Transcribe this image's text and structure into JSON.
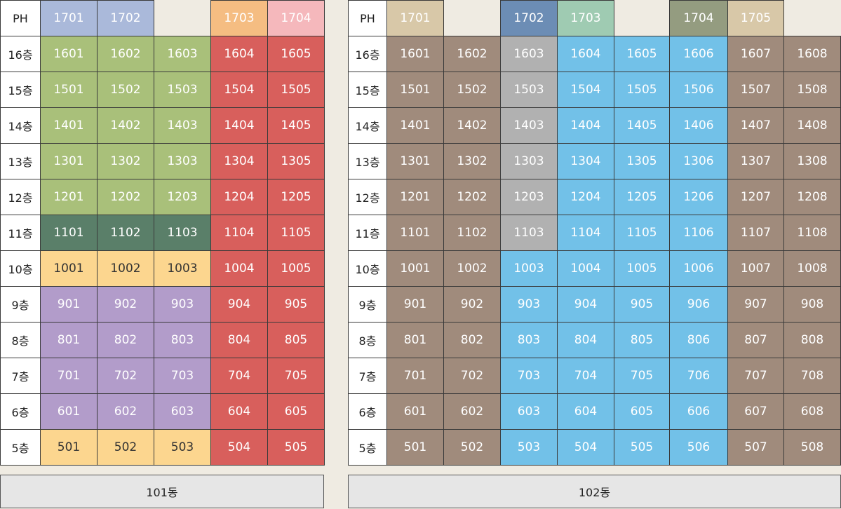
{
  "palette": {
    "lightblue": "#aab9da",
    "orange": "#f5bd82",
    "pink": "#f5b8bc",
    "green": "#a9c07a",
    "darkgreen": "#5a7f69",
    "yellow": "#fcd68f",
    "purple": "#b29cca",
    "red": "#d85f5c",
    "tan": "#d8c8a8",
    "steel": "#6c8db5",
    "mint": "#9fcbb2",
    "olive": "#949c80",
    "brown": "#a08b7c",
    "gray": "#b1b1b1",
    "sky": "#72c1e8"
  },
  "buildings": [
    {
      "id": "b101",
      "name": "101동",
      "col_widths": [
        57,
        81,
        81,
        81,
        81,
        81
      ],
      "rows": [
        {
          "label": "PH",
          "cells": [
            {
              "t": "1701",
              "c": "lightblue"
            },
            {
              "t": "1702",
              "c": "lightblue"
            },
            null,
            {
              "t": "1703",
              "c": "orange"
            },
            {
              "t": "1704",
              "c": "pink"
            }
          ]
        },
        {
          "label": "16층",
          "cells": [
            {
              "t": "1601",
              "c": "green"
            },
            {
              "t": "1602",
              "c": "green"
            },
            {
              "t": "1603",
              "c": "green"
            },
            {
              "t": "1604",
              "c": "red"
            },
            {
              "t": "1605",
              "c": "red"
            }
          ]
        },
        {
          "label": "15층",
          "cells": [
            {
              "t": "1501",
              "c": "green"
            },
            {
              "t": "1502",
              "c": "green"
            },
            {
              "t": "1503",
              "c": "green"
            },
            {
              "t": "1504",
              "c": "red"
            },
            {
              "t": "1505",
              "c": "red"
            }
          ]
        },
        {
          "label": "14층",
          "cells": [
            {
              "t": "1401",
              "c": "green"
            },
            {
              "t": "1402",
              "c": "green"
            },
            {
              "t": "1403",
              "c": "green"
            },
            {
              "t": "1404",
              "c": "red"
            },
            {
              "t": "1405",
              "c": "red"
            }
          ]
        },
        {
          "label": "13층",
          "cells": [
            {
              "t": "1301",
              "c": "green"
            },
            {
              "t": "1302",
              "c": "green"
            },
            {
              "t": "1303",
              "c": "green"
            },
            {
              "t": "1304",
              "c": "red"
            },
            {
              "t": "1305",
              "c": "red"
            }
          ]
        },
        {
          "label": "12층",
          "cells": [
            {
              "t": "1201",
              "c": "green"
            },
            {
              "t": "1202",
              "c": "green"
            },
            {
              "t": "1203",
              "c": "green"
            },
            {
              "t": "1204",
              "c": "red"
            },
            {
              "t": "1205",
              "c": "red"
            }
          ]
        },
        {
          "label": "11층",
          "cells": [
            {
              "t": "1101",
              "c": "darkgreen"
            },
            {
              "t": "1102",
              "c": "darkgreen"
            },
            {
              "t": "1103",
              "c": "darkgreen"
            },
            {
              "t": "1104",
              "c": "red"
            },
            {
              "t": "1105",
              "c": "red"
            }
          ]
        },
        {
          "label": "10층",
          "cells": [
            {
              "t": "1001",
              "c": "yellow",
              "d": 1
            },
            {
              "t": "1002",
              "c": "yellow",
              "d": 1
            },
            {
              "t": "1003",
              "c": "yellow",
              "d": 1
            },
            {
              "t": "1004",
              "c": "red"
            },
            {
              "t": "1005",
              "c": "red"
            }
          ]
        },
        {
          "label": "9층",
          "cells": [
            {
              "t": "901",
              "c": "purple"
            },
            {
              "t": "902",
              "c": "purple"
            },
            {
              "t": "903",
              "c": "purple"
            },
            {
              "t": "904",
              "c": "red"
            },
            {
              "t": "905",
              "c": "red"
            }
          ]
        },
        {
          "label": "8층",
          "cells": [
            {
              "t": "801",
              "c": "purple"
            },
            {
              "t": "802",
              "c": "purple"
            },
            {
              "t": "803",
              "c": "purple"
            },
            {
              "t": "804",
              "c": "red"
            },
            {
              "t": "805",
              "c": "red"
            }
          ]
        },
        {
          "label": "7층",
          "cells": [
            {
              "t": "701",
              "c": "purple"
            },
            {
              "t": "702",
              "c": "purple"
            },
            {
              "t": "703",
              "c": "purple"
            },
            {
              "t": "704",
              "c": "red"
            },
            {
              "t": "705",
              "c": "red"
            }
          ]
        },
        {
          "label": "6층",
          "cells": [
            {
              "t": "601",
              "c": "purple"
            },
            {
              "t": "602",
              "c": "purple"
            },
            {
              "t": "603",
              "c": "purple"
            },
            {
              "t": "604",
              "c": "red"
            },
            {
              "t": "605",
              "c": "red"
            }
          ]
        },
        {
          "label": "5층",
          "cells": [
            {
              "t": "501",
              "c": "yellow",
              "d": 1
            },
            {
              "t": "502",
              "c": "yellow",
              "d": 1
            },
            {
              "t": "503",
              "c": "yellow",
              "d": 1
            },
            {
              "t": "504",
              "c": "red"
            },
            {
              "t": "505",
              "c": "red"
            }
          ]
        }
      ]
    },
    {
      "id": "b102",
      "name": "102동",
      "col_widths": [
        55,
        81,
        81,
        81,
        81,
        79,
        83,
        80,
        81
      ],
      "rows": [
        {
          "label": "PH",
          "cells": [
            {
              "t": "1701",
              "c": "tan"
            },
            null,
            {
              "t": "1702",
              "c": "steel"
            },
            {
              "t": "1703",
              "c": "mint"
            },
            null,
            {
              "t": "1704",
              "c": "olive"
            },
            {
              "t": "1705",
              "c": "tan"
            },
            null
          ]
        },
        {
          "label": "16층",
          "cells": [
            {
              "t": "1601",
              "c": "brown"
            },
            {
              "t": "1602",
              "c": "brown"
            },
            {
              "t": "1603",
              "c": "gray"
            },
            {
              "t": "1604",
              "c": "sky"
            },
            {
              "t": "1605",
              "c": "sky"
            },
            {
              "t": "1606",
              "c": "sky"
            },
            {
              "t": "1607",
              "c": "brown"
            },
            {
              "t": "1608",
              "c": "brown"
            }
          ]
        },
        {
          "label": "15층",
          "cells": [
            {
              "t": "1501",
              "c": "brown"
            },
            {
              "t": "1502",
              "c": "brown"
            },
            {
              "t": "1503",
              "c": "gray"
            },
            {
              "t": "1504",
              "c": "sky"
            },
            {
              "t": "1505",
              "c": "sky"
            },
            {
              "t": "1506",
              "c": "sky"
            },
            {
              "t": "1507",
              "c": "brown"
            },
            {
              "t": "1508",
              "c": "brown"
            }
          ]
        },
        {
          "label": "14층",
          "cells": [
            {
              "t": "1401",
              "c": "brown"
            },
            {
              "t": "1402",
              "c": "brown"
            },
            {
              "t": "1403",
              "c": "gray"
            },
            {
              "t": "1404",
              "c": "sky"
            },
            {
              "t": "1405",
              "c": "sky"
            },
            {
              "t": "1406",
              "c": "sky"
            },
            {
              "t": "1407",
              "c": "brown"
            },
            {
              "t": "1408",
              "c": "brown"
            }
          ]
        },
        {
          "label": "13층",
          "cells": [
            {
              "t": "1301",
              "c": "brown"
            },
            {
              "t": "1302",
              "c": "brown"
            },
            {
              "t": "1303",
              "c": "gray"
            },
            {
              "t": "1304",
              "c": "sky"
            },
            {
              "t": "1305",
              "c": "sky"
            },
            {
              "t": "1306",
              "c": "sky"
            },
            {
              "t": "1307",
              "c": "brown"
            },
            {
              "t": "1308",
              "c": "brown"
            }
          ]
        },
        {
          "label": "12층",
          "cells": [
            {
              "t": "1201",
              "c": "brown"
            },
            {
              "t": "1202",
              "c": "brown"
            },
            {
              "t": "1203",
              "c": "gray"
            },
            {
              "t": "1204",
              "c": "sky"
            },
            {
              "t": "1205",
              "c": "sky"
            },
            {
              "t": "1206",
              "c": "sky"
            },
            {
              "t": "1207",
              "c": "brown"
            },
            {
              "t": "1208",
              "c": "brown"
            }
          ]
        },
        {
          "label": "11층",
          "cells": [
            {
              "t": "1101",
              "c": "brown"
            },
            {
              "t": "1102",
              "c": "brown"
            },
            {
              "t": "1103",
              "c": "gray"
            },
            {
              "t": "1104",
              "c": "sky"
            },
            {
              "t": "1105",
              "c": "sky"
            },
            {
              "t": "1106",
              "c": "sky"
            },
            {
              "t": "1107",
              "c": "brown"
            },
            {
              "t": "1108",
              "c": "brown"
            }
          ]
        },
        {
          "label": "10층",
          "cells": [
            {
              "t": "1001",
              "c": "brown"
            },
            {
              "t": "1002",
              "c": "brown"
            },
            {
              "t": "1003",
              "c": "sky"
            },
            {
              "t": "1004",
              "c": "sky"
            },
            {
              "t": "1005",
              "c": "sky"
            },
            {
              "t": "1006",
              "c": "sky"
            },
            {
              "t": "1007",
              "c": "brown"
            },
            {
              "t": "1008",
              "c": "brown"
            }
          ]
        },
        {
          "label": "9층",
          "cells": [
            {
              "t": "901",
              "c": "brown"
            },
            {
              "t": "902",
              "c": "brown"
            },
            {
              "t": "903",
              "c": "sky"
            },
            {
              "t": "904",
              "c": "sky"
            },
            {
              "t": "905",
              "c": "sky"
            },
            {
              "t": "906",
              "c": "sky"
            },
            {
              "t": "907",
              "c": "brown"
            },
            {
              "t": "908",
              "c": "brown"
            }
          ]
        },
        {
          "label": "8층",
          "cells": [
            {
              "t": "801",
              "c": "brown"
            },
            {
              "t": "802",
              "c": "brown"
            },
            {
              "t": "803",
              "c": "sky"
            },
            {
              "t": "804",
              "c": "sky"
            },
            {
              "t": "805",
              "c": "sky"
            },
            {
              "t": "806",
              "c": "sky"
            },
            {
              "t": "807",
              "c": "brown"
            },
            {
              "t": "808",
              "c": "brown"
            }
          ]
        },
        {
          "label": "7층",
          "cells": [
            {
              "t": "701",
              "c": "brown"
            },
            {
              "t": "702",
              "c": "brown"
            },
            {
              "t": "703",
              "c": "sky"
            },
            {
              "t": "704",
              "c": "sky"
            },
            {
              "t": "705",
              "c": "sky"
            },
            {
              "t": "706",
              "c": "sky"
            },
            {
              "t": "707",
              "c": "brown"
            },
            {
              "t": "708",
              "c": "brown"
            }
          ]
        },
        {
          "label": "6층",
          "cells": [
            {
              "t": "601",
              "c": "brown"
            },
            {
              "t": "602",
              "c": "brown"
            },
            {
              "t": "603",
              "c": "sky"
            },
            {
              "t": "604",
              "c": "sky"
            },
            {
              "t": "605",
              "c": "sky"
            },
            {
              "t": "606",
              "c": "sky"
            },
            {
              "t": "607",
              "c": "brown"
            },
            {
              "t": "608",
              "c": "brown"
            }
          ]
        },
        {
          "label": "5층",
          "cells": [
            {
              "t": "501",
              "c": "brown"
            },
            {
              "t": "502",
              "c": "brown"
            },
            {
              "t": "503",
              "c": "sky"
            },
            {
              "t": "504",
              "c": "sky"
            },
            {
              "t": "505",
              "c": "sky"
            },
            {
              "t": "506",
              "c": "sky"
            },
            {
              "t": "507",
              "c": "brown"
            },
            {
              "t": "508",
              "c": "brown"
            }
          ]
        }
      ]
    }
  ]
}
